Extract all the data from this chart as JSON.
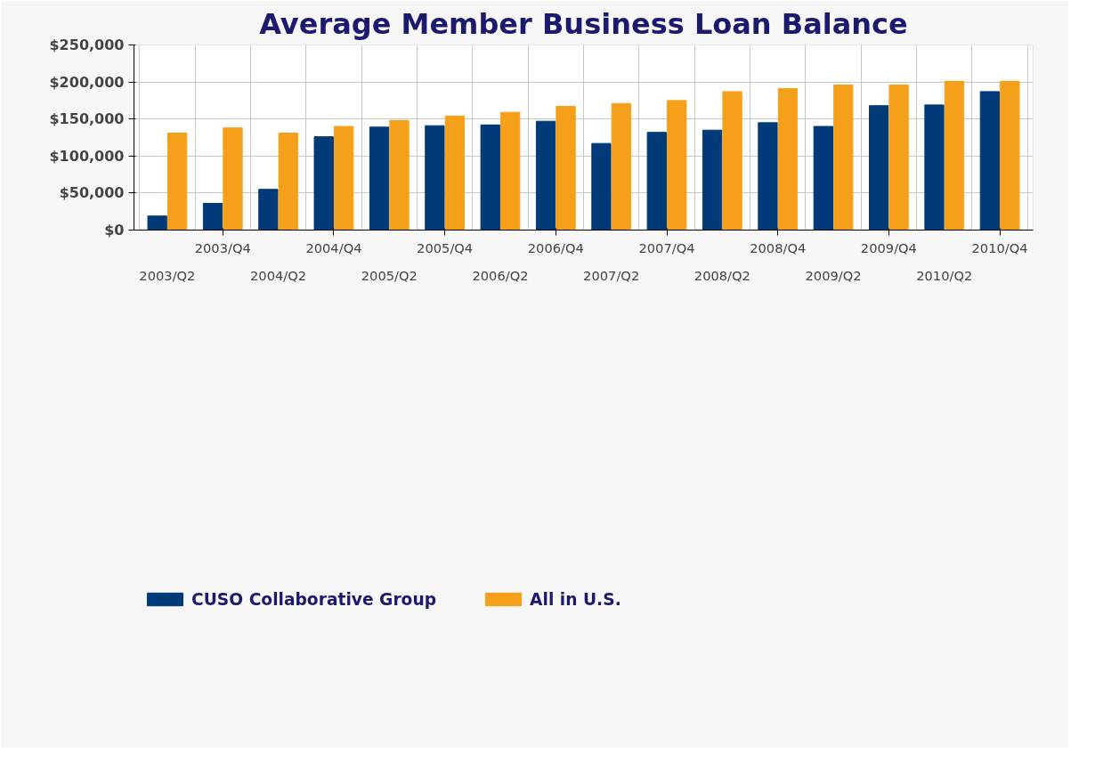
{
  "chart_data": {
    "type": "bar",
    "title": "Average Member Business Loan Balance",
    "categories": [
      "2003/Q2",
      "2003/Q4",
      "2004/Q2",
      "2004/Q4",
      "2005/Q2",
      "2005/Q4",
      "2006/Q2",
      "2006/Q4",
      "2007/Q2",
      "2007/Q4",
      "2008/Q2",
      "2008/Q4",
      "2009/Q2",
      "2009/Q4",
      "2010/Q2",
      "2010/Q4"
    ],
    "series": [
      {
        "name": "CUSO Collaborative Group",
        "color": "#003a78",
        "values": [
          19000,
          36000,
          55000,
          126000,
          139000,
          141000,
          142000,
          147000,
          117000,
          132000,
          135000,
          145000,
          140000,
          168000,
          169000,
          187000
        ]
      },
      {
        "name": "All in U.S.",
        "color": "#f5a01a",
        "values": [
          131000,
          138000,
          131000,
          140000,
          148000,
          154000,
          159000,
          167000,
          171000,
          175000,
          187000,
          191000,
          196000,
          196000,
          201000,
          201000
        ]
      }
    ],
    "ylim": [
      0,
      250000
    ],
    "yticks": [
      {
        "value": 0,
        "label": "$0"
      },
      {
        "value": 50000,
        "label": "$50,000"
      },
      {
        "value": 100000,
        "label": "$100,000"
      },
      {
        "value": 150000,
        "label": "$150,000"
      },
      {
        "value": 200000,
        "label": "$200,000"
      },
      {
        "value": 250000,
        "label": "$250,000"
      }
    ],
    "grid": true,
    "legend": "bottom left"
  }
}
